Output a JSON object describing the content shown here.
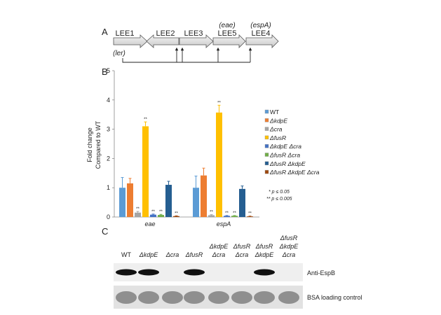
{
  "panels": {
    "a": "A",
    "b": "B",
    "c": "C"
  },
  "operon_diagram": {
    "genes": [
      {
        "name": "LEE1",
        "sub": "(ler)",
        "direction": "right"
      },
      {
        "name": "LEE2",
        "direction": "left"
      },
      {
        "name": "LEE3",
        "direction": "right"
      },
      {
        "name": "LEE5",
        "above": "(eae)",
        "direction": "right"
      },
      {
        "name": "LEE4",
        "above": "(espA)",
        "direction": "right"
      }
    ]
  },
  "chart_data": {
    "type": "bar",
    "ylabel": [
      "Fold change",
      "Compared to WT"
    ],
    "ylim": [
      0,
      5
    ],
    "yticks": [
      "0",
      "1",
      "2",
      "3",
      "4",
      "5"
    ],
    "categories": [
      "eae",
      "espA"
    ],
    "series": [
      {
        "name": "WT",
        "color": "#5b9bd5",
        "values": [
          1.0,
          1.0
        ],
        "errors": [
          0.35,
          0.4
        ],
        "sig": [
          "",
          ""
        ]
      },
      {
        "name": "ΔkdpE",
        "color": "#ed7d31",
        "values": [
          1.15,
          1.42
        ],
        "errors": [
          0.17,
          0.25
        ],
        "sig": [
          "",
          ""
        ]
      },
      {
        "name": "Δcra",
        "color": "#a5a5a5",
        "values": [
          0.15,
          0.06
        ],
        "errors": [
          0.04,
          0.02
        ],
        "sig": [
          "**",
          "**"
        ]
      },
      {
        "name": "ΔfusR",
        "color": "#ffc000",
        "values": [
          3.1,
          3.57
        ],
        "errors": [
          0.15,
          0.25
        ],
        "sig": [
          "**",
          "**"
        ]
      },
      {
        "name": "ΔkdpE Δcra",
        "color": "#4472c4",
        "values": [
          0.08,
          0.04
        ],
        "errors": [
          0.02,
          0.01
        ],
        "sig": [
          "**",
          "**"
        ]
      },
      {
        "name": "ΔfusR Δcra",
        "color": "#70ad47",
        "values": [
          0.07,
          0.04
        ],
        "errors": [
          0.02,
          0.01
        ],
        "sig": [
          "**",
          "**"
        ]
      },
      {
        "name": "ΔfusR ΔkdpE",
        "color": "#255e91",
        "values": [
          1.1,
          0.96
        ],
        "errors": [
          0.12,
          0.1
        ],
        "sig": [
          "",
          ""
        ]
      },
      {
        "name": "ΔfusR ΔkdpE Δcra",
        "color": "#9e480e",
        "values": [
          0.03,
          0.02
        ],
        "errors": [
          0.01,
          0.01
        ],
        "sig": [
          "**",
          "**"
        ]
      }
    ],
    "legend_position": "right",
    "notes": [
      "* p ≤ 0.05",
      "** p ≤ 0.005"
    ]
  },
  "blot": {
    "lanes": [
      [
        "WT"
      ],
      [
        "ΔkdpE"
      ],
      [
        "Δcra"
      ],
      [
        "ΔfusR"
      ],
      [
        "ΔkdpE",
        "Δcra"
      ],
      [
        "ΔfusR",
        "Δcra"
      ],
      [
        "ΔfusR",
        "ΔkdpE"
      ],
      [
        "ΔfusR",
        "ΔkdpE",
        "Δcra"
      ]
    ],
    "espb_band_present": [
      true,
      true,
      false,
      true,
      false,
      false,
      true,
      false
    ],
    "rows": [
      "Anti-EspB",
      "BSA loading control"
    ]
  }
}
